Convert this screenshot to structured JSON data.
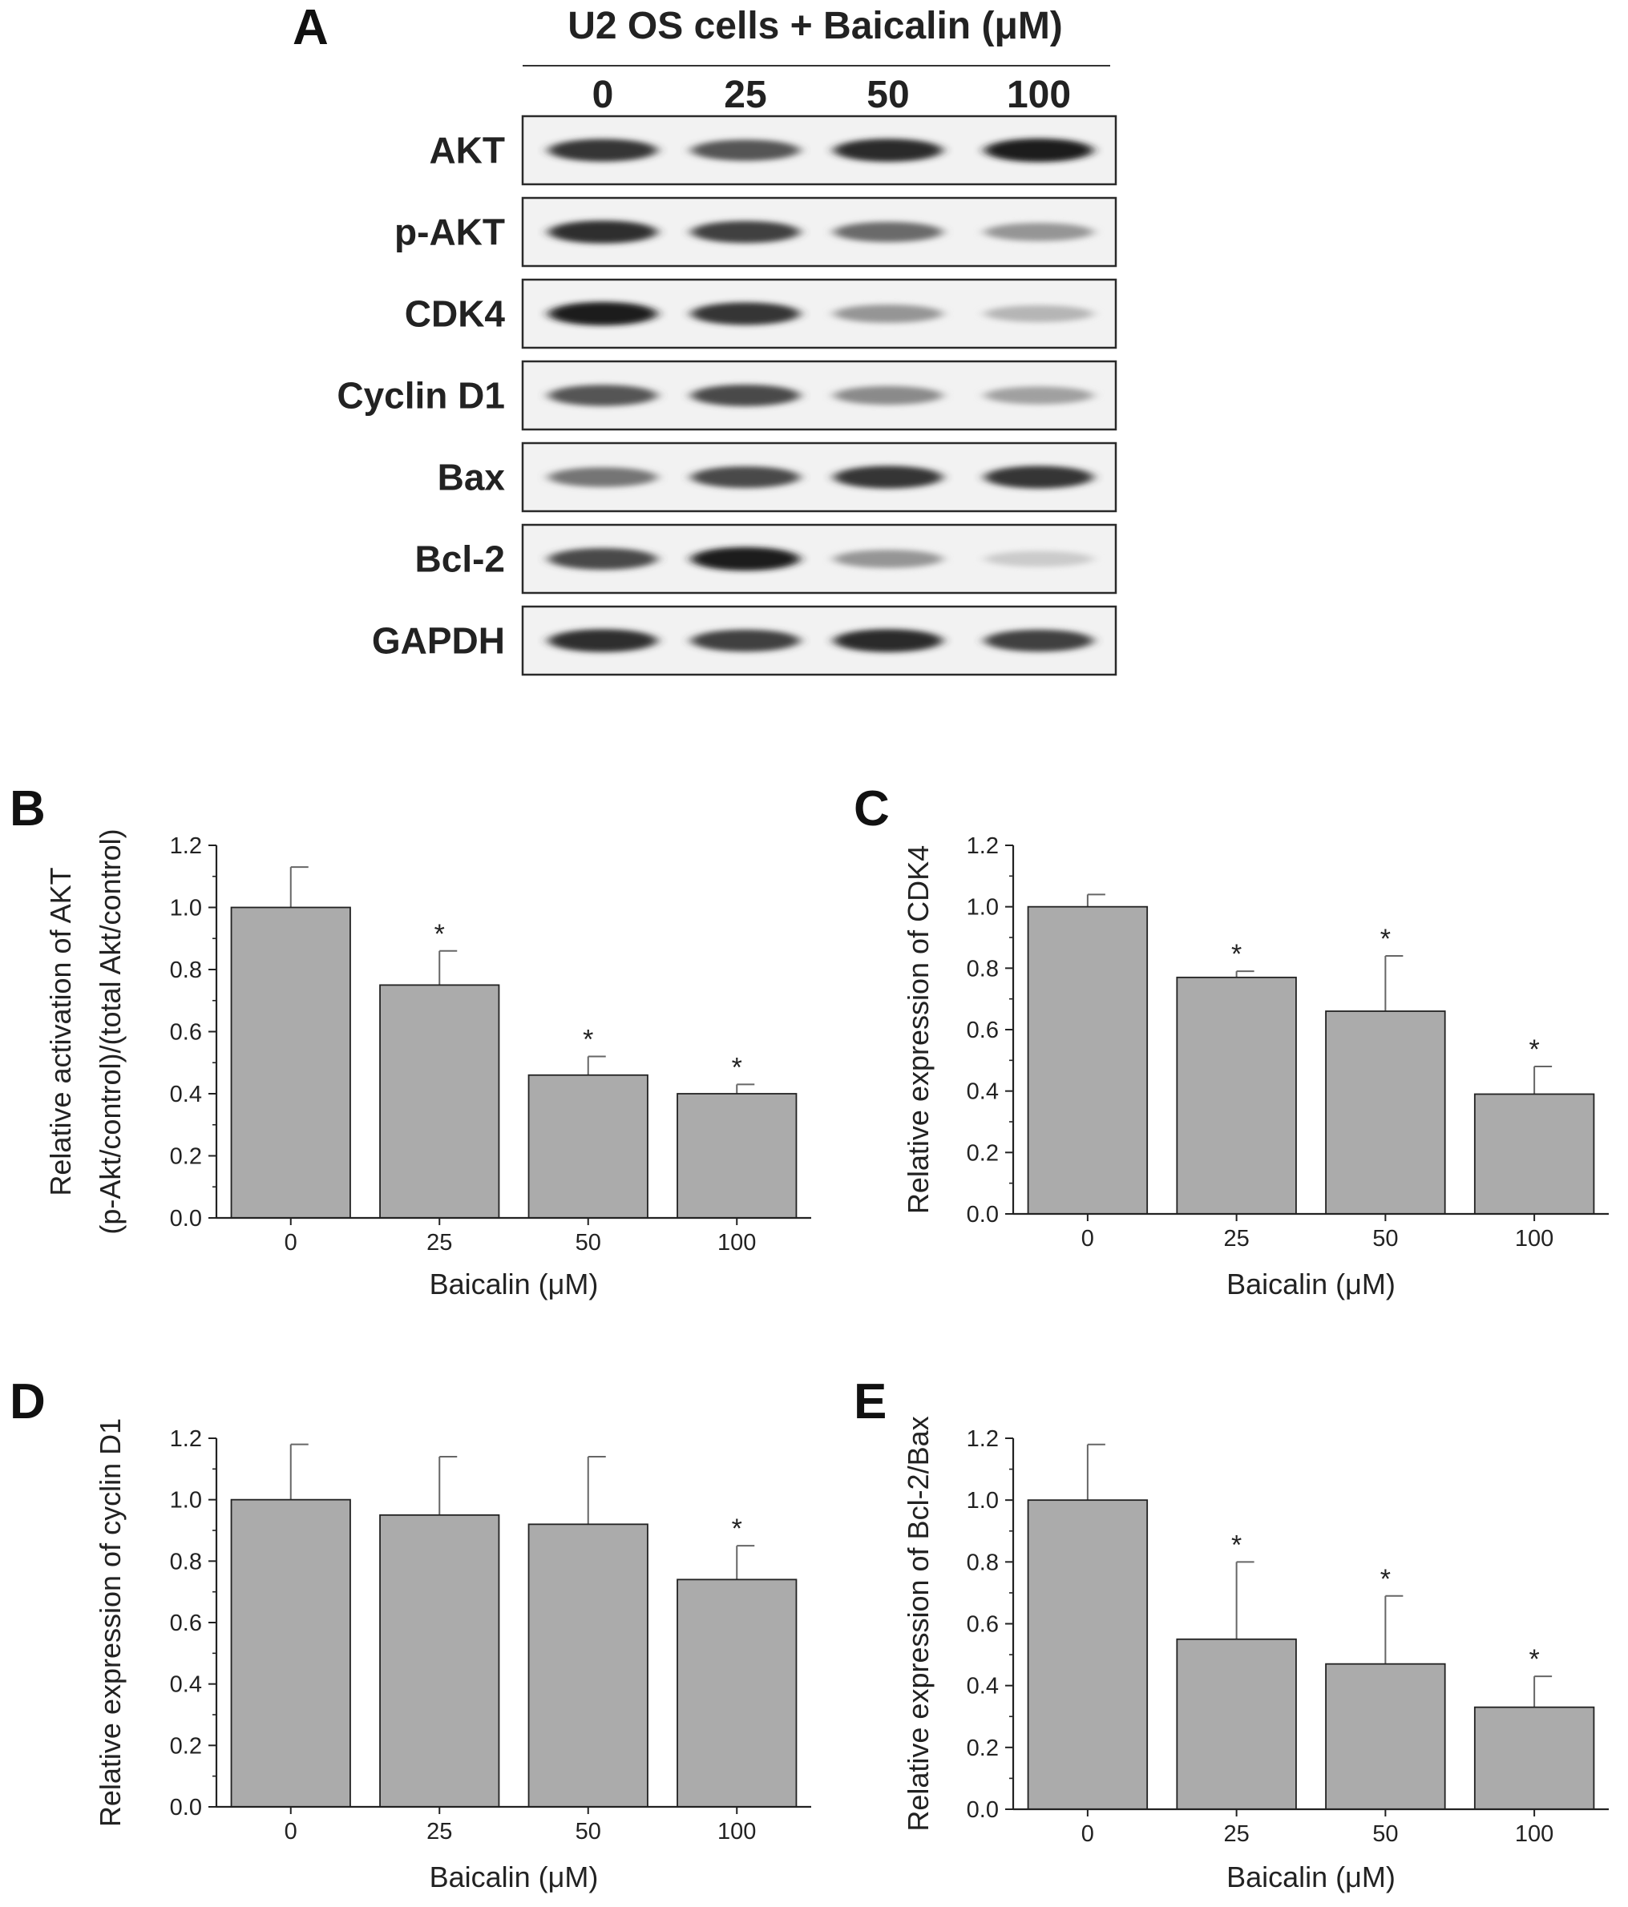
{
  "panel_a": {
    "letter": "A",
    "header": "U2 OS cells + Baicalin (μM)",
    "lane_labels": [
      "0",
      "25",
      "50",
      "100"
    ],
    "blots": [
      {
        "label": "AKT",
        "intensity": [
          0.85,
          0.7,
          0.9,
          0.95
        ]
      },
      {
        "label": "p-AKT",
        "intensity": [
          0.88,
          0.8,
          0.6,
          0.4
        ]
      },
      {
        "label": "CDK4",
        "intensity": [
          0.95,
          0.85,
          0.4,
          0.25
        ]
      },
      {
        "label": "Cyclin D1",
        "intensity": [
          0.7,
          0.75,
          0.45,
          0.35
        ]
      },
      {
        "label": "Bax",
        "intensity": [
          0.55,
          0.75,
          0.85,
          0.85
        ]
      },
      {
        "label": "Bcl-2",
        "intensity": [
          0.75,
          0.95,
          0.4,
          0.15
        ]
      },
      {
        "label": "GAPDH",
        "intensity": [
          0.88,
          0.8,
          0.9,
          0.8
        ]
      }
    ]
  },
  "chart_data": [
    {
      "id": "B",
      "type": "bar",
      "letter": "B",
      "categories": [
        "0",
        "25",
        "50",
        "100"
      ],
      "values": [
        1.0,
        0.75,
        0.46,
        0.4
      ],
      "errors": [
        0.13,
        0.11,
        0.06,
        0.03
      ],
      "significant": [
        false,
        true,
        true,
        true
      ],
      "significance_marker": "*",
      "xlabel": "Baicalin (μM)",
      "ylabel_lines": [
        "Relative activation of AKT",
        "(p-Akt/control)/(total Akt/control)"
      ],
      "ylim": [
        0,
        1.2
      ],
      "yticks": [
        "0.0",
        "0.2",
        "0.4",
        "0.6",
        "0.8",
        "1.0",
        "1.2"
      ],
      "bar_color": "#ababab"
    },
    {
      "id": "C",
      "type": "bar",
      "letter": "C",
      "categories": [
        "0",
        "25",
        "50",
        "100"
      ],
      "values": [
        1.0,
        0.77,
        0.66,
        0.39
      ],
      "errors": [
        0.04,
        0.02,
        0.18,
        0.09
      ],
      "significant": [
        false,
        true,
        true,
        true
      ],
      "significance_marker": "*",
      "xlabel": "Baicalin (μM)",
      "ylabel_lines": [
        "Relative expression of CDK4"
      ],
      "ylim": [
        0,
        1.2
      ],
      "yticks": [
        "0.0",
        "0.2",
        "0.4",
        "0.6",
        "0.8",
        "1.0",
        "1.2"
      ],
      "bar_color": "#ababab"
    },
    {
      "id": "D",
      "type": "bar",
      "letter": "D",
      "categories": [
        "0",
        "25",
        "50",
        "100"
      ],
      "values": [
        1.0,
        0.95,
        0.92,
        0.74
      ],
      "errors": [
        0.18,
        0.19,
        0.22,
        0.11
      ],
      "significant": [
        false,
        false,
        false,
        true
      ],
      "significance_marker": "*",
      "xlabel": "Baicalin (μM)",
      "ylabel_lines": [
        "Relative expression of cyclin D1"
      ],
      "ylim": [
        0,
        1.2
      ],
      "yticks": [
        "0.0",
        "0.2",
        "0.4",
        "0.6",
        "0.8",
        "1.0",
        "1.2"
      ],
      "bar_color": "#ababab"
    },
    {
      "id": "E",
      "type": "bar",
      "letter": "E",
      "categories": [
        "0",
        "25",
        "50",
        "100"
      ],
      "values": [
        1.0,
        0.55,
        0.47,
        0.33
      ],
      "errors": [
        0.18,
        0.25,
        0.22,
        0.1
      ],
      "significant": [
        false,
        true,
        true,
        true
      ],
      "significance_marker": "*",
      "xlabel": "Baicalin (μM)",
      "ylabel_lines": [
        "Relative expression of Bcl-2/Bax"
      ],
      "ylim": [
        0,
        1.2
      ],
      "yticks": [
        "0.0",
        "0.2",
        "0.4",
        "0.6",
        "0.8",
        "1.0",
        "1.2"
      ],
      "bar_color": "#ababab"
    }
  ]
}
